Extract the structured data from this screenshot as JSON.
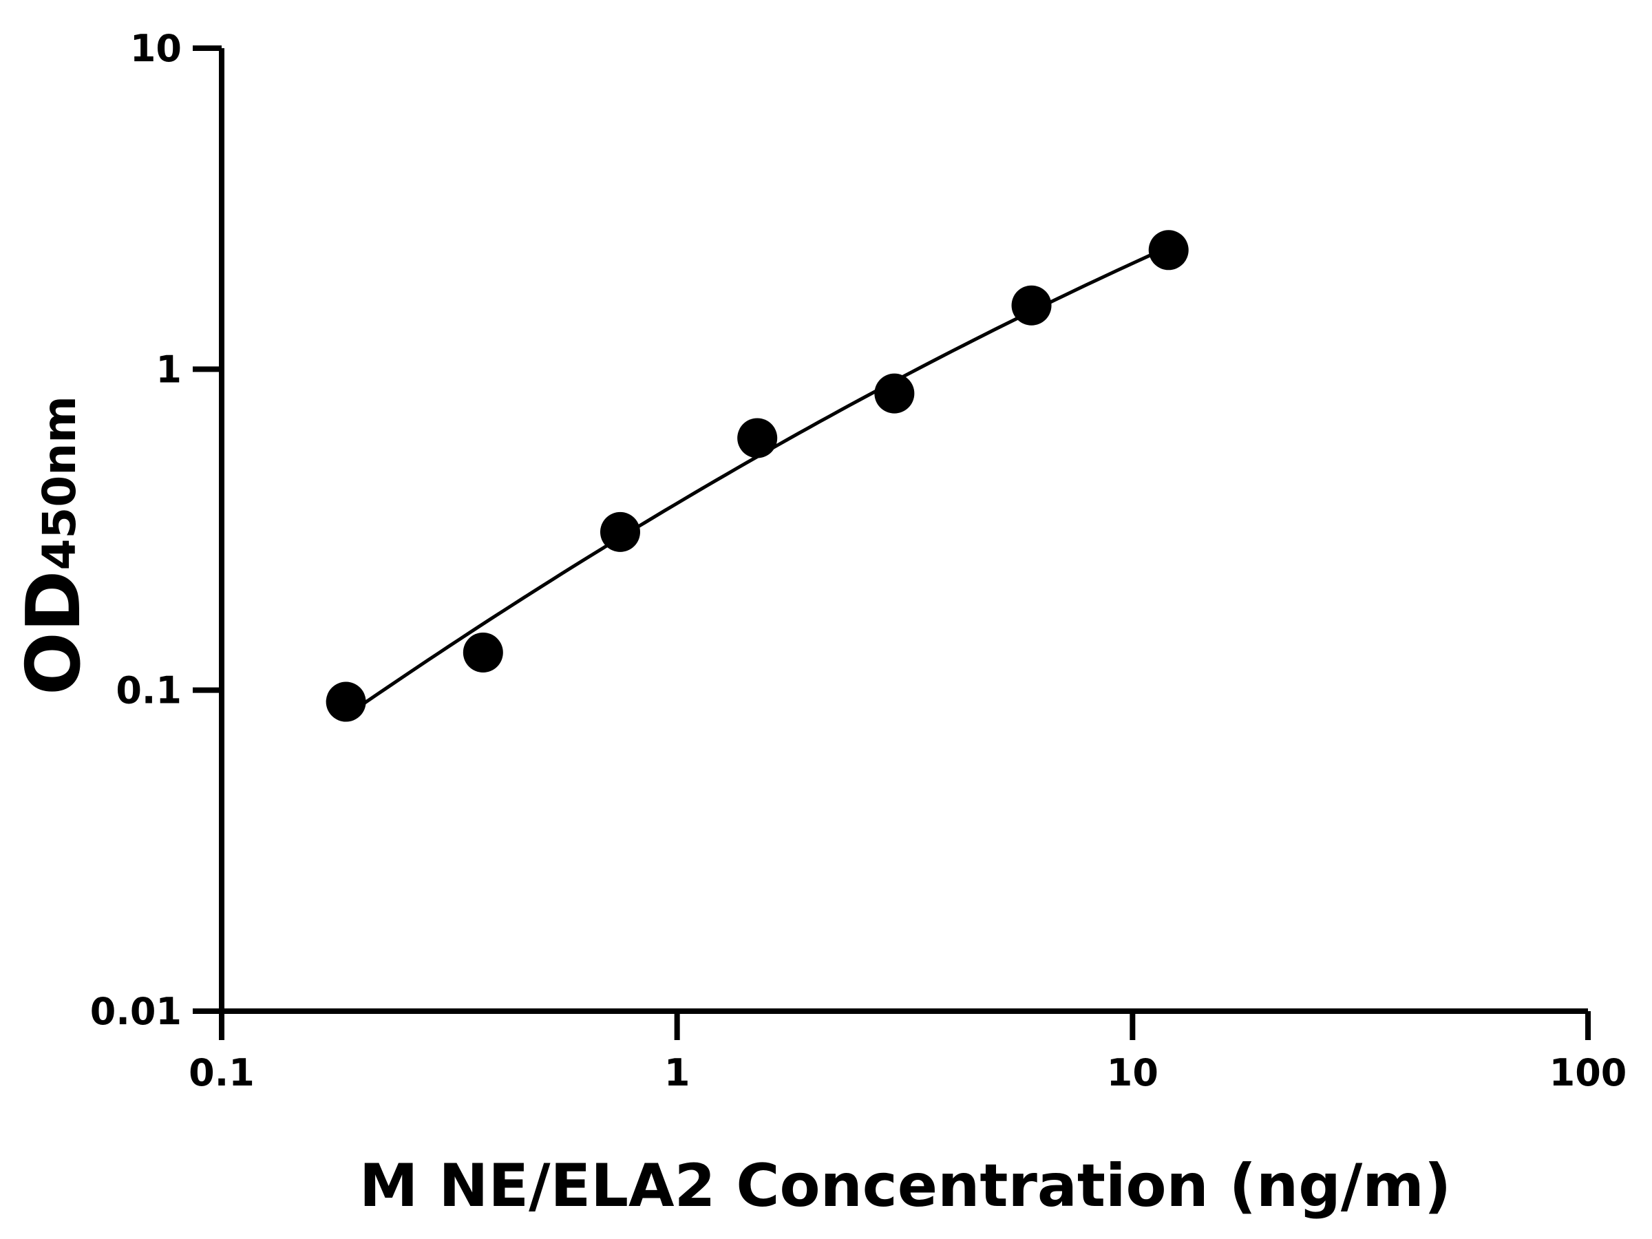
{
  "chart_data": {
    "type": "scatter",
    "title": "",
    "xlabel": "M NE/ELA2 Concentration (ng/m)",
    "ylabel": {
      "main": "OD",
      "subscript": "450nm"
    },
    "x_scale": "log",
    "y_scale": "log",
    "xlim": [
      0.1,
      100
    ],
    "ylim": [
      0.01,
      10
    ],
    "x_ticks": [
      "0.1",
      "1",
      "10",
      "100"
    ],
    "y_ticks": [
      "0.01",
      "0.1",
      "1",
      "10"
    ],
    "grid": false,
    "fit_curve": true,
    "series": [
      {
        "x": [
          0.1875,
          0.375,
          0.75,
          1.5,
          3,
          6,
          12
        ],
        "y": [
          0.092,
          0.131,
          0.311,
          0.61,
          0.84,
          1.58,
          2.35
        ]
      }
    ],
    "colors": {
      "points": "#000000",
      "line": "#000000"
    }
  }
}
